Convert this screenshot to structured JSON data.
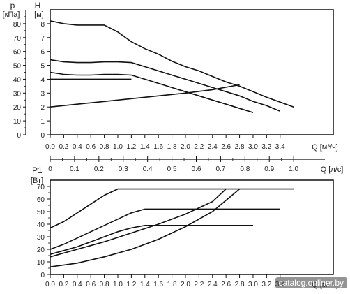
{
  "watermark": "catalog.onliner.by",
  "chart_data": [
    {
      "type": "line",
      "name_id": "head-chart",
      "ylabel_left": "p",
      "ylabel_left_unit": "[кПа]",
      "ylabel_right": "H",
      "ylabel_right_unit": "[м]",
      "xlabel": "Q [м³/ч]",
      "xlabel2": "Q [л/с]",
      "xlim": [
        0,
        3.6
      ],
      "ylim": [
        0,
        9
      ],
      "x_ticks": [
        0.0,
        0.2,
        0.4,
        0.6,
        0.8,
        1.0,
        1.2,
        1.4,
        1.6,
        1.8,
        2.0,
        2.2,
        2.4,
        2.6,
        2.8,
        3.0,
        3.2,
        3.4
      ],
      "x_tick_labels": [
        "0.0",
        "0.2",
        "0.4",
        "0.6",
        "0.8",
        "1.0",
        "1.2",
        "1.4",
        "1.6",
        "1.8",
        "2.0",
        "2.2",
        "2.4",
        "2.6",
        "2.8",
        "3.0",
        "3.2",
        "3.4"
      ],
      "h_ticks": [
        0,
        1,
        2,
        3,
        4,
        5,
        6,
        7,
        8
      ],
      "h_tick_labels": [
        "0",
        "1",
        "2",
        "3",
        "4",
        "5",
        "6",
        "7",
        "8"
      ],
      "p_ticks": [
        0,
        10,
        20,
        30,
        40,
        50,
        60,
        70,
        80
      ],
      "p_tick_labels": [
        "0",
        "10",
        "20",
        "30",
        "40",
        "50",
        "60",
        "70",
        "80"
      ],
      "ls_ticks": [
        0,
        0.1,
        0.2,
        0.3,
        0.4,
        0.5,
        0.6,
        0.7,
        0.8,
        0.9,
        1.0
      ],
      "ls_tick_labels": [
        "0",
        "0.1",
        "0.2",
        "0.3",
        "0.4",
        "0.5",
        "0.6",
        "0.7",
        "0.8",
        "0.9",
        "1.0"
      ],
      "grid": false,
      "series": [
        {
          "points": [
            [
              0,
              8.2
            ],
            [
              0.2,
              8.0
            ],
            [
              0.4,
              7.9
            ],
            [
              0.6,
              7.9
            ],
            [
              0.8,
              7.9
            ],
            [
              1.0,
              7.4
            ],
            [
              1.2,
              6.7
            ],
            [
              1.4,
              6.2
            ],
            [
              1.6,
              5.8
            ],
            [
              1.8,
              5.3
            ],
            [
              2.0,
              4.9
            ],
            [
              2.2,
              4.6
            ],
            [
              2.4,
              4.2
            ],
            [
              2.6,
              3.8
            ],
            [
              2.8,
              3.5
            ],
            [
              3.0,
              3.1
            ],
            [
              3.2,
              2.7
            ],
            [
              3.4,
              2.35
            ],
            [
              3.6,
              2.0
            ]
          ]
        },
        {
          "points": [
            [
              0,
              5.4
            ],
            [
              0.2,
              5.25
            ],
            [
              0.4,
              5.2
            ],
            [
              0.6,
              5.2
            ],
            [
              0.8,
              5.25
            ],
            [
              1.0,
              5.25
            ],
            [
              1.2,
              5.2
            ],
            [
              1.4,
              4.9
            ],
            [
              1.6,
              4.6
            ],
            [
              1.8,
              4.3
            ],
            [
              2.0,
              4.0
            ],
            [
              2.2,
              3.7
            ],
            [
              2.4,
              3.4
            ],
            [
              2.6,
              3.1
            ],
            [
              2.8,
              2.8
            ],
            [
              3.0,
              2.4
            ],
            [
              3.2,
              2.1
            ],
            [
              3.4,
              1.7
            ]
          ]
        },
        {
          "points": [
            [
              0,
              4.5
            ],
            [
              0.2,
              4.35
            ],
            [
              0.4,
              4.3
            ],
            [
              0.6,
              4.3
            ],
            [
              0.8,
              4.35
            ],
            [
              1.0,
              4.35
            ],
            [
              1.2,
              4.3
            ],
            [
              1.4,
              4.0
            ],
            [
              1.6,
              3.7
            ],
            [
              1.8,
              3.4
            ],
            [
              2.0,
              3.1
            ],
            [
              2.2,
              2.8
            ],
            [
              2.4,
              2.5
            ],
            [
              2.6,
              2.2
            ],
            [
              2.8,
              1.9
            ],
            [
              3.0,
              1.6
            ]
          ]
        },
        {
          "points": [
            [
              0,
              4.0
            ],
            [
              0.4,
              4.0
            ],
            [
              0.8,
              4.0
            ],
            [
              1.2,
              4.0
            ]
          ]
        },
        {
          "points": [
            [
              0,
              2.0
            ],
            [
              0.4,
              2.2
            ],
            [
              0.8,
              2.4
            ],
            [
              1.2,
              2.6
            ],
            [
              1.6,
              2.8
            ],
            [
              2.0,
              3.0
            ],
            [
              2.4,
              3.25
            ],
            [
              2.8,
              3.6
            ]
          ]
        }
      ]
    },
    {
      "type": "line",
      "name_id": "power-chart",
      "ylabel": "P1",
      "ylabel_unit": "[Вт]",
      "xlabel": "Q [м³/ч]",
      "xlim": [
        0,
        3.6
      ],
      "ylim": [
        0,
        70
      ],
      "y_ticks": [
        0,
        10,
        20,
        30,
        40,
        50,
        60,
        70
      ],
      "y_tick_labels": [
        "0",
        "10",
        "20",
        "30",
        "40",
        "50",
        "60",
        "70"
      ],
      "x_ticks": [
        0.0,
        0.2,
        0.4,
        0.6,
        0.8,
        1.0,
        1.2,
        1.4,
        1.6,
        1.8,
        2.0,
        2.2,
        2.4,
        2.6,
        2.8,
        3.0,
        3.2,
        3.4
      ],
      "x_tick_labels": [
        "0.0",
        "0.2",
        "0.4",
        "0.6",
        "0.8",
        "1.0",
        "1.2",
        "1.4",
        "1.6",
        "1.8",
        "2.0",
        "2.2",
        "2.4",
        "2.6",
        "2.8",
        "3.0",
        "3.2",
        "3.4"
      ],
      "grid": false,
      "series": [
        {
          "points": [
            [
              0,
              37
            ],
            [
              0.2,
              42
            ],
            [
              0.4,
              49
            ],
            [
              0.6,
              56
            ],
            [
              0.8,
              63
            ],
            [
              1.0,
              68
            ],
            [
              1.2,
              68
            ],
            [
              1.6,
              68
            ],
            [
              2.0,
              68
            ],
            [
              2.4,
              68
            ],
            [
              2.8,
              68
            ],
            [
              3.2,
              68
            ],
            [
              3.6,
              68
            ]
          ]
        },
        {
          "points": [
            [
              0,
              20
            ],
            [
              0.2,
              24
            ],
            [
              0.4,
              29
            ],
            [
              0.6,
              34
            ],
            [
              0.8,
              39
            ],
            [
              1.0,
              44
            ],
            [
              1.2,
              49
            ],
            [
              1.4,
              52
            ],
            [
              1.8,
              52
            ],
            [
              2.2,
              52
            ],
            [
              2.6,
              52
            ],
            [
              3.0,
              52
            ],
            [
              3.4,
              52
            ]
          ]
        },
        {
          "points": [
            [
              0,
              16
            ],
            [
              0.2,
              19
            ],
            [
              0.4,
              22
            ],
            [
              0.6,
              26
            ],
            [
              0.8,
              30
            ],
            [
              1.0,
              34
            ],
            [
              1.2,
              37
            ],
            [
              1.4,
              39
            ],
            [
              1.8,
              39
            ],
            [
              2.2,
              39
            ],
            [
              2.6,
              39
            ],
            [
              3.0,
              39
            ]
          ]
        },
        {
          "points": [
            [
              0,
              14
            ],
            [
              0.4,
              20
            ],
            [
              0.8,
              26
            ],
            [
              1.2,
              33
            ],
            [
              1.6,
              40
            ],
            [
              2.0,
              48
            ],
            [
              2.4,
              58
            ],
            [
              2.6,
              68
            ]
          ]
        },
        {
          "points": [
            [
              0,
              6
            ],
            [
              0.4,
              9
            ],
            [
              0.8,
              14
            ],
            [
              1.2,
              20
            ],
            [
              1.6,
              28
            ],
            [
              2.0,
              38
            ],
            [
              2.4,
              50
            ],
            [
              2.8,
              68
            ]
          ]
        }
      ]
    }
  ]
}
